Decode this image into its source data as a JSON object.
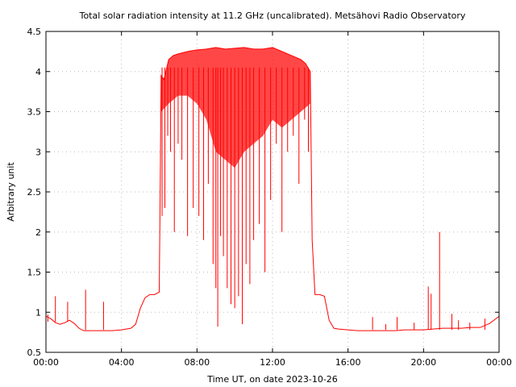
{
  "chart_data": {
    "type": "line",
    "title": "Total solar radiation intensity at 11.2 GHz (uncalibrated). Metsähovi Radio Observatory",
    "xlabel": "Time UT, on date 2023-10-26",
    "ylabel": "Arbitrary unit",
    "xlim_hours": [
      0,
      24
    ],
    "ylim": [
      0.5,
      4.5
    ],
    "x_tick_hours": [
      0,
      4,
      8,
      12,
      16,
      20,
      24
    ],
    "x_tick_labels": [
      "00:00",
      "04:00",
      "08:00",
      "12:00",
      "16:00",
      "20:00",
      "00:00"
    ],
    "y_ticks": [
      0.5,
      1,
      1.5,
      2,
      2.5,
      3,
      3.5,
      4,
      4.5
    ],
    "y_tick_labels": [
      "0.5",
      "1",
      "1.5",
      "2",
      "2.5",
      "3",
      "3.5",
      "4",
      "4.5"
    ],
    "grid": true,
    "legend": "none",
    "series": [
      {
        "color": "#ff0000",
        "x_hours": [
          0,
          0.25,
          0.5,
          0.75,
          1.0,
          1.25,
          1.5,
          1.75,
          2.0,
          2.5,
          3.0,
          3.5,
          4.0,
          4.5,
          4.75,
          5.0,
          5.25,
          5.5,
          5.75,
          6.0,
          6.05,
          6.1,
          6.25,
          6.5,
          6.75,
          7.0,
          7.5,
          8.0,
          8.5,
          9.0,
          9.5,
          10.0,
          10.5,
          11.0,
          11.5,
          12.0,
          12.5,
          13.0,
          13.5,
          13.75,
          14.0,
          14.1,
          14.25,
          14.5,
          14.75,
          15.0,
          15.25,
          15.5,
          16.0,
          16.5,
          17.0,
          17.5,
          18.0,
          18.5,
          19.0,
          19.5,
          20.0,
          20.5,
          21.0,
          21.5,
          22.0,
          22.5,
          23.0,
          23.5,
          24.0
        ],
        "values": [
          0.95,
          0.92,
          0.87,
          0.85,
          0.87,
          0.9,
          0.86,
          0.8,
          0.77,
          0.77,
          0.77,
          0.77,
          0.78,
          0.8,
          0.85,
          1.05,
          1.18,
          1.22,
          1.22,
          1.25,
          2.5,
          3.95,
          3.9,
          4.15,
          4.2,
          4.22,
          4.25,
          4.27,
          4.28,
          4.3,
          4.28,
          4.29,
          4.3,
          4.28,
          4.28,
          4.3,
          4.25,
          4.2,
          4.15,
          4.1,
          4.0,
          1.9,
          1.22,
          1.22,
          1.2,
          0.9,
          0.8,
          0.79,
          0.78,
          0.77,
          0.77,
          0.77,
          0.77,
          0.77,
          0.78,
          0.78,
          0.78,
          0.79,
          0.8,
          0.8,
          0.8,
          0.81,
          0.81,
          0.86,
          0.95
        ]
      }
    ],
    "dips": {
      "x_hours": [
        6.15,
        6.3,
        6.45,
        6.6,
        6.8,
        7.0,
        7.2,
        7.5,
        7.8,
        8.1,
        8.35,
        8.6,
        8.85,
        9.0,
        9.1,
        9.25,
        9.4,
        9.6,
        9.8,
        10.0,
        10.2,
        10.4,
        10.6,
        10.8,
        11.0,
        11.3,
        11.6,
        11.9,
        12.2,
        12.5,
        12.8,
        13.1,
        13.4,
        13.7,
        13.9
      ],
      "values": [
        2.2,
        2.3,
        3.2,
        3.0,
        2.0,
        3.1,
        2.9,
        1.95,
        2.3,
        2.2,
        1.9,
        2.6,
        1.6,
        1.3,
        0.82,
        1.95,
        1.7,
        1.3,
        1.1,
        1.05,
        1.2,
        0.85,
        1.6,
        1.35,
        1.9,
        2.1,
        1.5,
        2.4,
        3.1,
        2.0,
        3.0,
        3.2,
        2.6,
        3.4,
        3.0
      ]
    },
    "spikes": {
      "x_hours": [
        0.1,
        0.5,
        1.15,
        2.1,
        3.05,
        17.3,
        18.0,
        18.6,
        19.5,
        20.25,
        20.4,
        20.85,
        21.5,
        21.85,
        22.45,
        23.25
      ],
      "values": [
        0.97,
        1.2,
        1.13,
        1.28,
        1.13,
        0.94,
        0.85,
        0.94,
        0.87,
        1.32,
        1.23,
        2.0,
        0.98,
        0.9,
        0.87,
        0.92
      ]
    }
  }
}
